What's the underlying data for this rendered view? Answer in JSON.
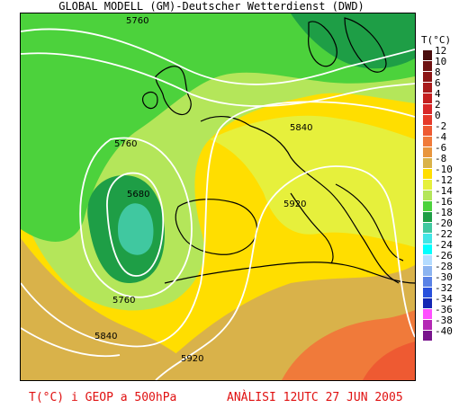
{
  "title": "GLOBAL MODELL (GM)-Deutscher Wetterdienst (DWD)",
  "legend": {
    "title": "T(°C)",
    "items": [
      {
        "value": "12",
        "color": "#4a0d0d"
      },
      {
        "value": "10",
        "color": "#6e1212"
      },
      {
        "value": "8",
        "color": "#8c1515"
      },
      {
        "value": "6",
        "color": "#a81a1a"
      },
      {
        "value": "4",
        "color": "#c41f1f"
      },
      {
        "value": "2",
        "color": "#d82828"
      },
      {
        "value": "0",
        "color": "#e63a2a"
      },
      {
        "value": "-2",
        "color": "#ee5a32"
      },
      {
        "value": "-4",
        "color": "#f07a3a"
      },
      {
        "value": "-6",
        "color": "#e8953e"
      },
      {
        "value": "-8",
        "color": "#d9b24a"
      },
      {
        "value": "-10",
        "color": "#ffde00"
      },
      {
        "value": "-12",
        "color": "#e6f03c"
      },
      {
        "value": "-14",
        "color": "#b4e65a"
      },
      {
        "value": "-16",
        "color": "#4cd23c"
      },
      {
        "value": "-18",
        "color": "#1e9e46"
      },
      {
        "value": "-20",
        "color": "#40c8a0"
      },
      {
        "value": "-22",
        "color": "#40e6e6"
      },
      {
        "value": "-24",
        "color": "#00ffff"
      },
      {
        "value": "-26",
        "color": "#b4dcff"
      },
      {
        "value": "-28",
        "color": "#8cb4f0"
      },
      {
        "value": "-30",
        "color": "#5a82e6"
      },
      {
        "value": "-32",
        "color": "#2850dc"
      },
      {
        "value": "-34",
        "color": "#1428b4"
      },
      {
        "value": "-36",
        "color": "#ff50ff"
      },
      {
        "value": "-38",
        "color": "#b428b4"
      },
      {
        "value": "-40",
        "color": "#78148c"
      }
    ]
  },
  "contour_labels": [
    "5760",
    "5840",
    "5760",
    "5680",
    "5920",
    "5760",
    "5840",
    "5920"
  ],
  "footer": {
    "left": "T(°C) i GEOP a 500hPa",
    "right": "ANÀLISI 12UTC 27 JUN 2005"
  }
}
